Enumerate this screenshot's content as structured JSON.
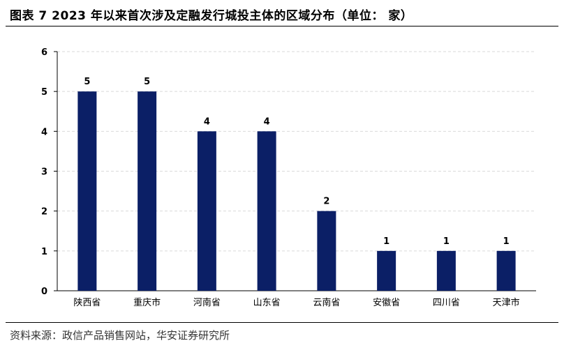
{
  "header": {
    "title": "图表 7 2023 年以来首次涉及定融发行城投主体的区域分布（单位：  家）"
  },
  "footer": {
    "source": "资料来源：政信产品销售网站，华安证券研究所"
  },
  "chart_data": {
    "type": "bar",
    "categories": [
      "陕西省",
      "重庆市",
      "河南省",
      "山东省",
      "云南省",
      "安徽省",
      "四川省",
      "天津市"
    ],
    "values": [
      5,
      5,
      4,
      4,
      2,
      1,
      1,
      1
    ],
    "ylim": [
      0,
      6
    ],
    "yticks": [
      0,
      1,
      2,
      3,
      4,
      5,
      6
    ],
    "grid": true,
    "data_labels": true,
    "bar_color": "#0b1f66",
    "grid_color": "#d9d9d9"
  }
}
